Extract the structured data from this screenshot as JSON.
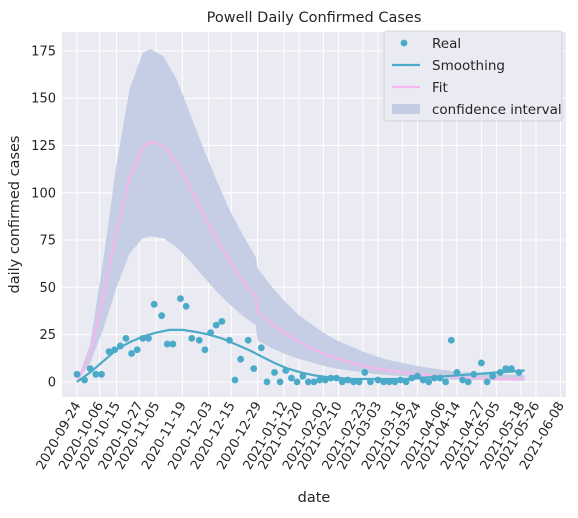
{
  "chart_data": {
    "type": "scatter",
    "title": "Powell Daily Confirmed Cases",
    "xlabel": "date",
    "ylabel": "daily confirmed cases",
    "xlim": [
      "2020-09-16",
      "2021-06-11"
    ],
    "ylim": [
      -8,
      185
    ],
    "x_ticks": [
      "2020-09-24",
      "2020-10-06",
      "2020-10-15",
      "2020-10-27",
      "2020-11-05",
      "2020-11-19",
      "2020-12-03",
      "2020-12-15",
      "2020-12-29",
      "2021-01-12",
      "2021-01-20",
      "2021-02-02",
      "2021-02-10",
      "2021-02-23",
      "2021-03-03",
      "2021-03-16",
      "2021-03-24",
      "2021-04-06",
      "2021-04-14",
      "2021-04-27",
      "2021-05-05",
      "2021-05-18",
      "2021-05-26",
      "2021-06-08"
    ],
    "y_ticks": [
      0,
      25,
      50,
      75,
      100,
      125,
      150,
      175
    ],
    "grid": true,
    "legend_position": "top-right",
    "legend": [
      "Real",
      "Smoothing",
      "Fit",
      "confidence interval"
    ],
    "colors": {
      "real": "#4aaac8",
      "smoothing": "#4aaac8",
      "fit": "#f7b6ee",
      "ci": "#c3cce3",
      "plot_bg": "#eaeaf2",
      "grid": "#ffffff"
    },
    "series": [
      {
        "name": "Real",
        "kind": "scatter",
        "points": [
          [
            "2020-09-24",
            4
          ],
          [
            "2020-09-28",
            1
          ],
          [
            "2020-10-01",
            7
          ],
          [
            "2020-10-04",
            4
          ],
          [
            "2020-10-07",
            4
          ],
          [
            "2020-10-11",
            16
          ],
          [
            "2020-10-14",
            17
          ],
          [
            "2020-10-17",
            19
          ],
          [
            "2020-10-20",
            23
          ],
          [
            "2020-10-23",
            15
          ],
          [
            "2020-10-26",
            17
          ],
          [
            "2020-10-29",
            23
          ],
          [
            "2020-11-01",
            23
          ],
          [
            "2020-11-04",
            41
          ],
          [
            "2020-11-08",
            35
          ],
          [
            "2020-11-11",
            20
          ],
          [
            "2020-11-14",
            20
          ],
          [
            "2020-11-18",
            44
          ],
          [
            "2020-11-21",
            40
          ],
          [
            "2020-11-24",
            23
          ],
          [
            "2020-11-28",
            22
          ],
          [
            "2020-12-01",
            17
          ],
          [
            "2020-12-04",
            26
          ],
          [
            "2020-12-07",
            30
          ],
          [
            "2020-12-10",
            32
          ],
          [
            "2020-12-14",
            22
          ],
          [
            "2020-12-17",
            1
          ],
          [
            "2020-12-20",
            12
          ],
          [
            "2020-12-24",
            22
          ],
          [
            "2020-12-27",
            7
          ],
          [
            "2020-12-31",
            18
          ],
          [
            "2021-01-03",
            0
          ],
          [
            "2021-01-07",
            5
          ],
          [
            "2021-01-10",
            0
          ],
          [
            "2021-01-13",
            6
          ],
          [
            "2021-01-16",
            2
          ],
          [
            "2021-01-19",
            0
          ],
          [
            "2021-01-22",
            3
          ],
          [
            "2021-01-25",
            0
          ],
          [
            "2021-01-28",
            0
          ],
          [
            "2021-01-31",
            1
          ],
          [
            "2021-02-03",
            1
          ],
          [
            "2021-02-06",
            2
          ],
          [
            "2021-02-09",
            2
          ],
          [
            "2021-02-12",
            0
          ],
          [
            "2021-02-15",
            1
          ],
          [
            "2021-02-18",
            0
          ],
          [
            "2021-02-21",
            0
          ],
          [
            "2021-02-24",
            5
          ],
          [
            "2021-02-27",
            0
          ],
          [
            "2021-03-03",
            1
          ],
          [
            "2021-03-06",
            0
          ],
          [
            "2021-03-09",
            0
          ],
          [
            "2021-03-12",
            0
          ],
          [
            "2021-03-15",
            1
          ],
          [
            "2021-03-18",
            0
          ],
          [
            "2021-03-21",
            2
          ],
          [
            "2021-03-24",
            3
          ],
          [
            "2021-03-27",
            1
          ],
          [
            "2021-03-30",
            0
          ],
          [
            "2021-04-02",
            2
          ],
          [
            "2021-04-05",
            2
          ],
          [
            "2021-04-08",
            0
          ],
          [
            "2021-04-11",
            22
          ],
          [
            "2021-04-14",
            5
          ],
          [
            "2021-04-17",
            1
          ],
          [
            "2021-04-20",
            0
          ],
          [
            "2021-04-23",
            4
          ],
          [
            "2021-04-27",
            10
          ],
          [
            "2021-04-30",
            0
          ],
          [
            "2021-05-03",
            3
          ],
          [
            "2021-05-07",
            5
          ],
          [
            "2021-05-10",
            7
          ],
          [
            "2021-05-13",
            7
          ],
          [
            "2021-05-17",
            5
          ]
        ]
      },
      {
        "name": "Smoothing",
        "kind": "line",
        "points": [
          [
            "2020-09-24",
            0
          ],
          [
            "2020-10-01",
            5
          ],
          [
            "2020-10-08",
            11
          ],
          [
            "2020-10-15",
            17
          ],
          [
            "2020-10-22",
            21
          ],
          [
            "2020-10-29",
            24
          ],
          [
            "2020-11-05",
            26
          ],
          [
            "2020-11-12",
            27.5
          ],
          [
            "2020-11-19",
            27.5
          ],
          [
            "2020-11-26",
            26.5
          ],
          [
            "2020-12-03",
            25
          ],
          [
            "2020-12-10",
            23
          ],
          [
            "2020-12-17",
            20
          ],
          [
            "2020-12-24",
            17
          ],
          [
            "2020-12-31",
            13.5
          ],
          [
            "2021-01-07",
            10
          ],
          [
            "2021-01-14",
            7
          ],
          [
            "2021-01-21",
            5
          ],
          [
            "2021-01-28",
            3.5
          ],
          [
            "2021-02-04",
            2.5
          ],
          [
            "2021-02-11",
            2
          ],
          [
            "2021-02-18",
            1.5
          ],
          [
            "2021-02-25",
            1.5
          ],
          [
            "2021-03-04",
            1.5
          ],
          [
            "2021-03-11",
            1.5
          ],
          [
            "2021-03-18",
            1.5
          ],
          [
            "2021-03-25",
            2
          ],
          [
            "2021-04-01",
            2.5
          ],
          [
            "2021-04-08",
            3
          ],
          [
            "2021-04-15",
            3.5
          ],
          [
            "2021-04-22",
            4
          ],
          [
            "2021-04-29",
            4.5
          ],
          [
            "2021-05-06",
            5
          ],
          [
            "2021-05-13",
            5.5
          ],
          [
            "2021-05-20",
            6
          ]
        ]
      },
      {
        "name": "Fit",
        "kind": "line",
        "points": [
          [
            "2020-09-24",
            0
          ],
          [
            "2020-10-01",
            15
          ],
          [
            "2020-10-08",
            45
          ],
          [
            "2020-10-15",
            80
          ],
          [
            "2020-10-22",
            108
          ],
          [
            "2020-10-29",
            124
          ],
          [
            "2020-11-02",
            127
          ],
          [
            "2020-11-09",
            125
          ],
          [
            "2020-11-16",
            116
          ],
          [
            "2020-11-23",
            103
          ],
          [
            "2020-11-30",
            89
          ],
          [
            "2020-12-07",
            76
          ],
          [
            "2020-12-14",
            64
          ],
          [
            "2020-12-21",
            53
          ],
          [
            "2020-12-28",
            45
          ],
          [
            "2020-12-29",
            37
          ],
          [
            "2021-01-05",
            31
          ],
          [
            "2021-01-12",
            26
          ],
          [
            "2021-01-19",
            22
          ],
          [
            "2021-01-26",
            18
          ],
          [
            "2021-02-02",
            15
          ],
          [
            "2021-02-09",
            12.5
          ],
          [
            "2021-02-16",
            10.5
          ],
          [
            "2021-02-23",
            8.5
          ],
          [
            "2021-03-02",
            7
          ],
          [
            "2021-03-09",
            6
          ],
          [
            "2021-03-16",
            5
          ],
          [
            "2021-03-23",
            4
          ],
          [
            "2021-03-30",
            3.5
          ],
          [
            "2021-04-06",
            3
          ],
          [
            "2021-04-13",
            2.5
          ],
          [
            "2021-04-20",
            2
          ],
          [
            "2021-05-04",
            1.5
          ],
          [
            "2021-05-20",
            1.5
          ]
        ]
      },
      {
        "name": "confidence interval",
        "kind": "band",
        "upper": [
          [
            "2020-09-24",
            0
          ],
          [
            "2020-10-01",
            20
          ],
          [
            "2020-10-08",
            65
          ],
          [
            "2020-10-15",
            115
          ],
          [
            "2020-10-22",
            155
          ],
          [
            "2020-10-29",
            174
          ],
          [
            "2020-11-02",
            176
          ],
          [
            "2020-11-09",
            172
          ],
          [
            "2020-11-16",
            160
          ],
          [
            "2020-11-23",
            142
          ],
          [
            "2020-11-30",
            124
          ],
          [
            "2020-12-07",
            107
          ],
          [
            "2020-12-14",
            91
          ],
          [
            "2020-12-21",
            78
          ],
          [
            "2020-12-28",
            66
          ],
          [
            "2020-12-29",
            60
          ],
          [
            "2021-01-05",
            51
          ],
          [
            "2021-01-12",
            43
          ],
          [
            "2021-01-19",
            36
          ],
          [
            "2021-01-26",
            31
          ],
          [
            "2021-02-02",
            26
          ],
          [
            "2021-02-09",
            22
          ],
          [
            "2021-02-16",
            19
          ],
          [
            "2021-02-23",
            16
          ],
          [
            "2021-03-02",
            13.5
          ],
          [
            "2021-03-09",
            11.5
          ],
          [
            "2021-03-16",
            10
          ],
          [
            "2021-03-23",
            8.5
          ],
          [
            "2021-03-30",
            7.5
          ],
          [
            "2021-04-06",
            6.5
          ],
          [
            "2021-04-13",
            5.5
          ],
          [
            "2021-04-20",
            5
          ],
          [
            "2021-05-04",
            4
          ],
          [
            "2021-05-20",
            3.5
          ]
        ],
        "lower": [
          [
            "2020-09-24",
            0
          ],
          [
            "2020-10-01",
            10
          ],
          [
            "2020-10-08",
            28
          ],
          [
            "2020-10-15",
            50
          ],
          [
            "2020-10-22",
            68
          ],
          [
            "2020-10-29",
            76
          ],
          [
            "2020-11-02",
            77
          ],
          [
            "2020-11-09",
            76
          ],
          [
            "2020-11-16",
            71
          ],
          [
            "2020-11-23",
            64
          ],
          [
            "2020-11-30",
            56
          ],
          [
            "2020-12-07",
            48
          ],
          [
            "2020-12-14",
            41
          ],
          [
            "2020-12-21",
            35
          ],
          [
            "2020-12-28",
            30
          ],
          [
            "2020-12-29",
            22
          ],
          [
            "2021-01-05",
            18
          ],
          [
            "2021-01-12",
            15
          ],
          [
            "2021-01-19",
            12.5
          ],
          [
            "2021-01-26",
            10.5
          ],
          [
            "2021-02-02",
            8.5
          ],
          [
            "2021-02-09",
            7
          ],
          [
            "2021-02-16",
            6
          ],
          [
            "2021-02-23",
            5
          ],
          [
            "2021-03-02",
            4
          ],
          [
            "2021-03-09",
            3.5
          ],
          [
            "2021-03-16",
            3
          ],
          [
            "2021-03-23",
            2.5
          ],
          [
            "2021-03-30",
            2
          ],
          [
            "2021-04-06",
            1.5
          ],
          [
            "2021-04-13",
            1.2
          ],
          [
            "2021-04-20",
            1
          ],
          [
            "2021-05-04",
            0.8
          ],
          [
            "2021-05-20",
            0.5
          ]
        ]
      }
    ]
  }
}
